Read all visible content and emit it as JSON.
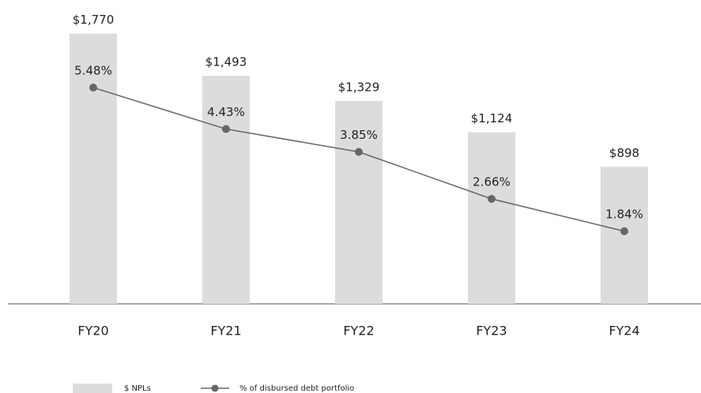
{
  "chart_data": {
    "type": "bar_line",
    "categories": [
      "FY20",
      "FY21",
      "FY22",
      "FY23",
      "FY24"
    ],
    "series": [
      {
        "name": "$ NPLs",
        "color": "#dcdcdc",
        "type": "bar",
        "values": [
          1770,
          1493,
          1329,
          1124,
          898
        ],
        "value_labels": [
          "$1,770",
          "$1,493",
          "$1,329",
          "$1,124",
          "$898"
        ]
      },
      {
        "name": "% of disbursed debt portfolio",
        "color": "#666666",
        "type": "line",
        "axis": "y2",
        "values": [
          5.48,
          4.43,
          3.85,
          2.66,
          1.84
        ],
        "value_labels": [
          "5.48%",
          "4.43%",
          "3.85%",
          "2.66%",
          "1.84%"
        ]
      }
    ],
    "ylim": [
      0,
      1990
    ],
    "y2lim": [
      0,
      7.7
    ],
    "legend": "bottom-left"
  }
}
